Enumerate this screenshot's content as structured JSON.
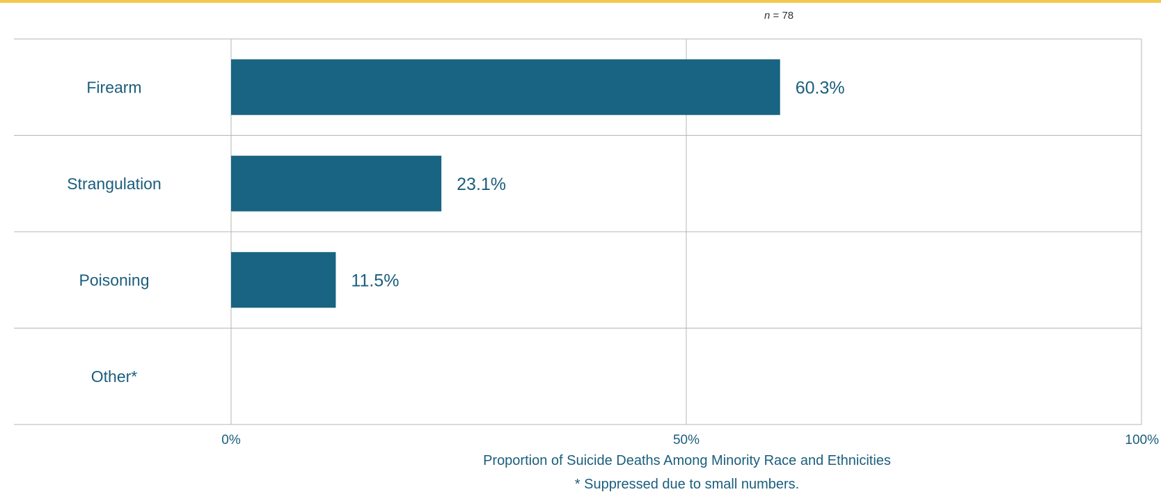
{
  "sample_size": {
    "prefix": "n",
    "text": " = 78"
  },
  "footnote": "* Suppressed due to small numbers.",
  "colors": {
    "bar": "#186482",
    "text": "#1a5e7c",
    "grid": "#b5b5b5",
    "accent": "#f2c94c"
  },
  "chart_data": {
    "type": "bar",
    "orientation": "horizontal",
    "categories": [
      "Firearm",
      "Strangulation",
      "Poisoning",
      "Other*"
    ],
    "values": [
      60.3,
      23.1,
      11.5,
      null
    ],
    "value_labels": [
      "60.3%",
      "23.1%",
      "11.5%",
      ""
    ],
    "xlabel": "Proportion of Suicide Deaths Among Minority Race and Ethnicities",
    "ylabel": "",
    "xlim": [
      0,
      100
    ],
    "xticks": [
      0,
      50,
      100
    ],
    "xtick_labels": [
      "0%",
      "50%",
      "100%"
    ],
    "grid": true,
    "legend": "none"
  }
}
